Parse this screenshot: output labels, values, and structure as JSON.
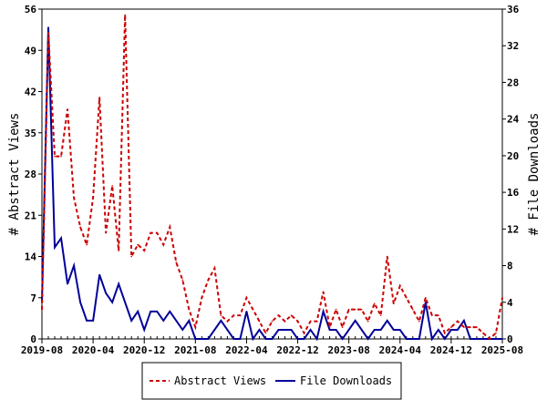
{
  "chart_data": {
    "type": "line",
    "ylabel_left": "# Abstract Views",
    "ylabel_right": "# File Downloads",
    "ylim_left": [
      0,
      56
    ],
    "ylim_right": [
      0,
      36
    ],
    "yticks_left": [
      0,
      7,
      14,
      21,
      28,
      35,
      42,
      49,
      56
    ],
    "yticks_right": [
      0,
      4,
      8,
      12,
      16,
      20,
      24,
      28,
      32,
      36
    ],
    "x_range": [
      "2019-08",
      "2025-08"
    ],
    "x_tick_labels": [
      "2019-08",
      "2020-04",
      "2020-12",
      "2021-08",
      "2022-04",
      "2022-12",
      "2023-08",
      "2024-04",
      "2024-12",
      "2025-08"
    ],
    "legend_position": "bottom-center",
    "grid": false,
    "series": [
      {
        "name": "Abstract Views",
        "axis": "left",
        "color": "#cc0000",
        "style": "dashed",
        "x": [
          "2019-08",
          "2019-09",
          "2019-10",
          "2019-11",
          "2019-12",
          "2020-01",
          "2020-02",
          "2020-03",
          "2020-04",
          "2020-05",
          "2020-06",
          "2020-07",
          "2020-08",
          "2020-09",
          "2020-10",
          "2020-11",
          "2020-12",
          "2021-01",
          "2021-02",
          "2021-03",
          "2021-04",
          "2021-05",
          "2021-06",
          "2021-07",
          "2021-08",
          "2021-09",
          "2021-10",
          "2021-11",
          "2021-12",
          "2022-01",
          "2022-02",
          "2022-03",
          "2022-04",
          "2022-05",
          "2022-06",
          "2022-07",
          "2022-08",
          "2022-09",
          "2022-10",
          "2022-11",
          "2022-12",
          "2023-01",
          "2023-02",
          "2023-03",
          "2023-04",
          "2023-05",
          "2023-06",
          "2023-07",
          "2023-08",
          "2023-09",
          "2023-10",
          "2023-11",
          "2023-12",
          "2024-01",
          "2024-02",
          "2024-03",
          "2024-04",
          "2024-05",
          "2024-06",
          "2024-07",
          "2024-08",
          "2024-09",
          "2024-10",
          "2024-11",
          "2024-12",
          "2025-01",
          "2025-02",
          "2025-03",
          "2025-04",
          "2025-05",
          "2025-06",
          "2025-07",
          "2025-08"
        ],
        "values": [
          5,
          52,
          31,
          31,
          39,
          24,
          19,
          16,
          24,
          41,
          18,
          26,
          15,
          55,
          14,
          16,
          15,
          18,
          18,
          16,
          19,
          13,
          10,
          5,
          2,
          7,
          10,
          12,
          4,
          3,
          4,
          4,
          7,
          5,
          3,
          1,
          3,
          4,
          3,
          4,
          3,
          1,
          3,
          3,
          8,
          2,
          5,
          2,
          5,
          5,
          5,
          3,
          6,
          4,
          14,
          6,
          9,
          7,
          5,
          3,
          7,
          4,
          4,
          1,
          2,
          3,
          2,
          2,
          2,
          1,
          0,
          1,
          7
        ]
      },
      {
        "name": "File Downloads",
        "axis": "right",
        "color": "#000099",
        "style": "solid",
        "x": [
          "2019-08",
          "2019-09",
          "2019-10",
          "2019-11",
          "2019-12",
          "2020-01",
          "2020-02",
          "2020-03",
          "2020-04",
          "2020-05",
          "2020-06",
          "2020-07",
          "2020-08",
          "2020-09",
          "2020-10",
          "2020-11",
          "2020-12",
          "2021-01",
          "2021-02",
          "2021-03",
          "2021-04",
          "2021-05",
          "2021-06",
          "2021-07",
          "2021-08",
          "2021-09",
          "2021-10",
          "2021-11",
          "2021-12",
          "2022-01",
          "2022-02",
          "2022-03",
          "2022-04",
          "2022-05",
          "2022-06",
          "2022-07",
          "2022-08",
          "2022-09",
          "2022-10",
          "2022-11",
          "2022-12",
          "2023-01",
          "2023-02",
          "2023-03",
          "2023-04",
          "2023-05",
          "2023-06",
          "2023-07",
          "2023-08",
          "2023-09",
          "2023-10",
          "2023-11",
          "2023-12",
          "2024-01",
          "2024-02",
          "2024-03",
          "2024-04",
          "2024-05",
          "2024-06",
          "2024-07",
          "2024-08",
          "2024-09",
          "2024-10",
          "2024-11",
          "2024-12",
          "2025-01",
          "2025-02",
          "2025-03",
          "2025-04",
          "2025-05",
          "2025-06",
          "2025-07",
          "2025-08"
        ],
        "values": [
          4,
          34,
          10,
          11,
          6,
          8,
          4,
          2,
          2,
          7,
          5,
          4,
          6,
          4,
          2,
          3,
          1,
          3,
          3,
          2,
          3,
          2,
          1,
          2,
          0,
          0,
          0,
          1,
          2,
          1,
          0,
          0,
          3,
          0,
          1,
          0,
          0,
          1,
          1,
          1,
          0,
          0,
          1,
          0,
          3,
          1,
          1,
          0,
          1,
          2,
          1,
          0,
          1,
          1,
          2,
          1,
          1,
          0,
          0,
          0,
          4,
          0,
          1,
          0,
          1,
          1,
          2,
          0,
          0,
          0,
          0,
          0,
          0
        ]
      }
    ]
  }
}
